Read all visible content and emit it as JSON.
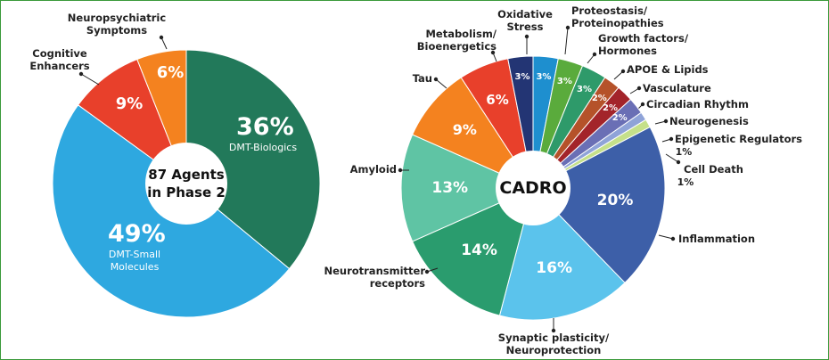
{
  "chart_data": [
    {
      "type": "pie",
      "center_label": "87 Agents in Phase 2",
      "categories": [
        "DMT-Biologics",
        "DMT-Small Molecules",
        "Cognitive Enhancers",
        "Neuropsychiatric Symptoms"
      ],
      "values": [
        36,
        49,
        9,
        6
      ],
      "value_labels": [
        "36%",
        "49%",
        "9%",
        "6%"
      ],
      "colors": [
        "#22795a",
        "#2ea8e0",
        "#e8402b",
        "#f4821f"
      ]
    },
    {
      "type": "pie",
      "center_label": "CADRO",
      "categories": [
        "Proteostasis/ Proteinopathies",
        "Growth factors/ Hormones",
        "APOE & Lipids",
        "Vasculature",
        "Circadian Rhythm",
        "Neurogenesis",
        "Epigenetic Regulators",
        "Cell Death",
        "Inflammation",
        "Synaptic plasticity/ Neuroprotection",
        "Neurotransmitter receptors",
        "Amyloid",
        "Tau",
        "Metabolism/ Bioenergetics",
        "Oxidative Stress"
      ],
      "values": [
        3,
        3,
        3,
        2,
        2,
        2,
        1,
        1,
        20,
        16,
        14,
        13,
        9,
        6,
        3
      ],
      "value_labels": [
        "3%",
        "3%",
        "3%",
        "2%",
        "2%",
        "2%",
        "1%",
        "1%",
        "20%",
        "16%",
        "14%",
        "13%",
        "9%",
        "6%",
        "3%"
      ],
      "colors": [
        "#1e8fcf",
        "#5aab3c",
        "#2e9a6a",
        "#b5522a",
        "#a3242a",
        "#6a6fb5",
        "#8fa3d8",
        "#c5e08a",
        "#3d5fa8",
        "#5bc3ec",
        "#2a9c6e",
        "#5fc4a4",
        "#f4821f",
        "#e8402b",
        "#233574"
      ]
    }
  ]
}
